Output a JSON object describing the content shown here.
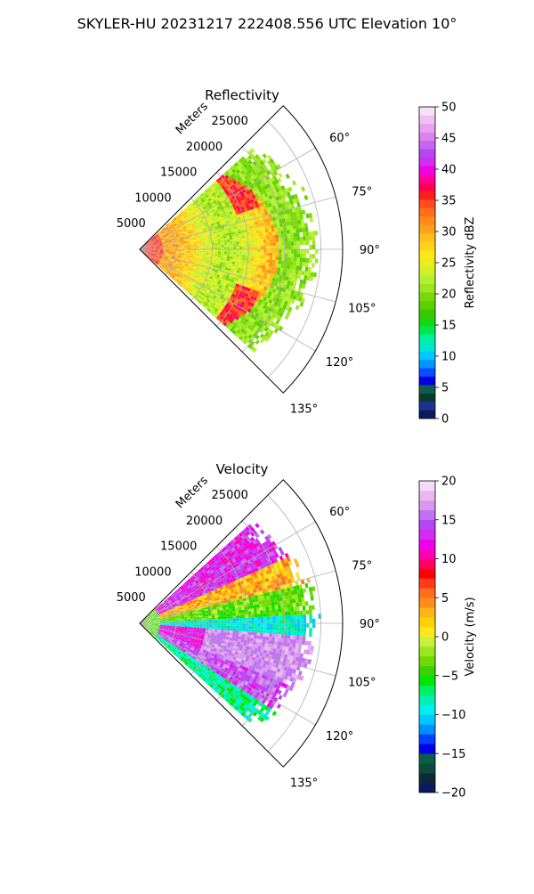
{
  "suptitle": "SKYLER-HU  20231217  222408.556 UTC Elevation 10°",
  "colors": {
    "ref_stops": [
      "#0c1a5e",
      "#1f2f96",
      "#0c3b2e",
      "#0f5e4a",
      "#0000e6",
      "#0a4bff",
      "#0096ff",
      "#00c8ff",
      "#00e6d2",
      "#00f0a0",
      "#00e650",
      "#16d80e",
      "#3cc800",
      "#5ad200",
      "#7ad80a",
      "#9be61e",
      "#b4f032",
      "#d2f02a",
      "#ebec1a",
      "#ffe619",
      "#ffd21a",
      "#ffbe1a",
      "#ffa01a",
      "#ff8a1a",
      "#ff6e1a",
      "#ff4e1a",
      "#ff1e1e",
      "#ff0050",
      "#ff00a0",
      "#f200e6",
      "#d42cf0",
      "#b446f5",
      "#c864f0",
      "#dc82ee",
      "#e8a0f0",
      "#f0c0f4",
      "#f8e0f8"
    ],
    "vel_stops": [
      "#0c1a5e",
      "#0c2a3a",
      "#0c4a3a",
      "#0a5e48",
      "#0000e6",
      "#0040ff",
      "#0090ff",
      "#00c8ff",
      "#00f0f0",
      "#00f0b4",
      "#00f060",
      "#00e600",
      "#3cd200",
      "#6edc00",
      "#9be61e",
      "#c8f03c",
      "#ffe61a",
      "#ffd200",
      "#ffb41a",
      "#ff8c1a",
      "#ff6e1a",
      "#ff3c1a",
      "#ff0000",
      "#ff0064",
      "#ff00b4",
      "#ee00ee",
      "#d22cf0",
      "#b446f5",
      "#c070f0",
      "#d898ee",
      "#e8b8f2",
      "#f4dcf8"
    ]
  },
  "chart_data": [
    {
      "type": "polar-sector",
      "title": "Reflectivity",
      "field": "reflectivity",
      "r_axis_label": "Meters",
      "r_ticks": [
        "5000",
        "10000",
        "15000",
        "20000",
        "25000"
      ],
      "r_tick_values": [
        5000,
        10000,
        15000,
        20000,
        25000
      ],
      "r_max": 28000,
      "theta_range_deg": [
        45,
        135
      ],
      "theta_ticks": [
        "60°",
        "75°",
        "90°",
        "105°",
        "120°",
        "135°"
      ],
      "theta_tick_values": [
        60,
        75,
        90,
        105,
        120,
        135
      ],
      "grid": true,
      "colorbar": {
        "label": "Reflectivity dBZ",
        "range": [
          0,
          50
        ],
        "ticks": [
          "0",
          "5",
          "10",
          "15",
          "20",
          "25",
          "30",
          "35",
          "40",
          "45",
          "50"
        ],
        "tick_values": [
          0,
          5,
          10,
          15,
          20,
          25,
          30,
          35,
          40,
          45,
          50
        ]
      }
    },
    {
      "type": "polar-sector",
      "title": "Velocity",
      "field": "velocity",
      "r_axis_label": "Meters",
      "r_ticks": [
        "5000",
        "10000",
        "15000",
        "20000",
        "25000"
      ],
      "r_tick_values": [
        5000,
        10000,
        15000,
        20000,
        25000
      ],
      "r_max": 28000,
      "theta_range_deg": [
        45,
        135
      ],
      "theta_ticks": [
        "60°",
        "75°",
        "90°",
        "105°",
        "120°",
        "135°"
      ],
      "theta_tick_values": [
        60,
        75,
        90,
        105,
        120,
        135
      ],
      "grid": true,
      "colorbar": {
        "label": "Velocity (m/s)",
        "range": [
          -20,
          20
        ],
        "ticks": [
          "−20",
          "−15",
          "−10",
          "−5",
          "0",
          "5",
          "10",
          "15",
          "20"
        ],
        "tick_values": [
          -20,
          -15,
          -10,
          -5,
          0,
          5,
          10,
          15,
          20
        ]
      }
    }
  ]
}
